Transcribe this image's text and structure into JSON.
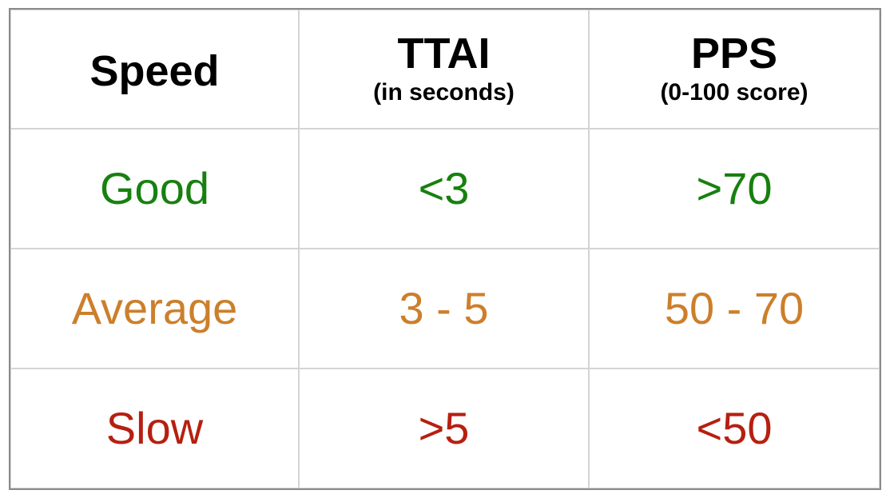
{
  "header": {
    "speed": "Speed",
    "ttai_title": "TTAI",
    "ttai_sub": "(in seconds)",
    "pps_title": "PPS",
    "pps_sub": "(0-100 score)"
  },
  "rows": [
    {
      "label": "Good",
      "ttai": "<3",
      "pps": ">70",
      "color": "#17800f"
    },
    {
      "label": "Average",
      "ttai": "3 - 5",
      "pps": "50 - 70",
      "color": "#cc7f2b"
    },
    {
      "label": "Slow",
      "ttai": ">5",
      "pps": "<50",
      "color": "#b61f10"
    }
  ]
}
